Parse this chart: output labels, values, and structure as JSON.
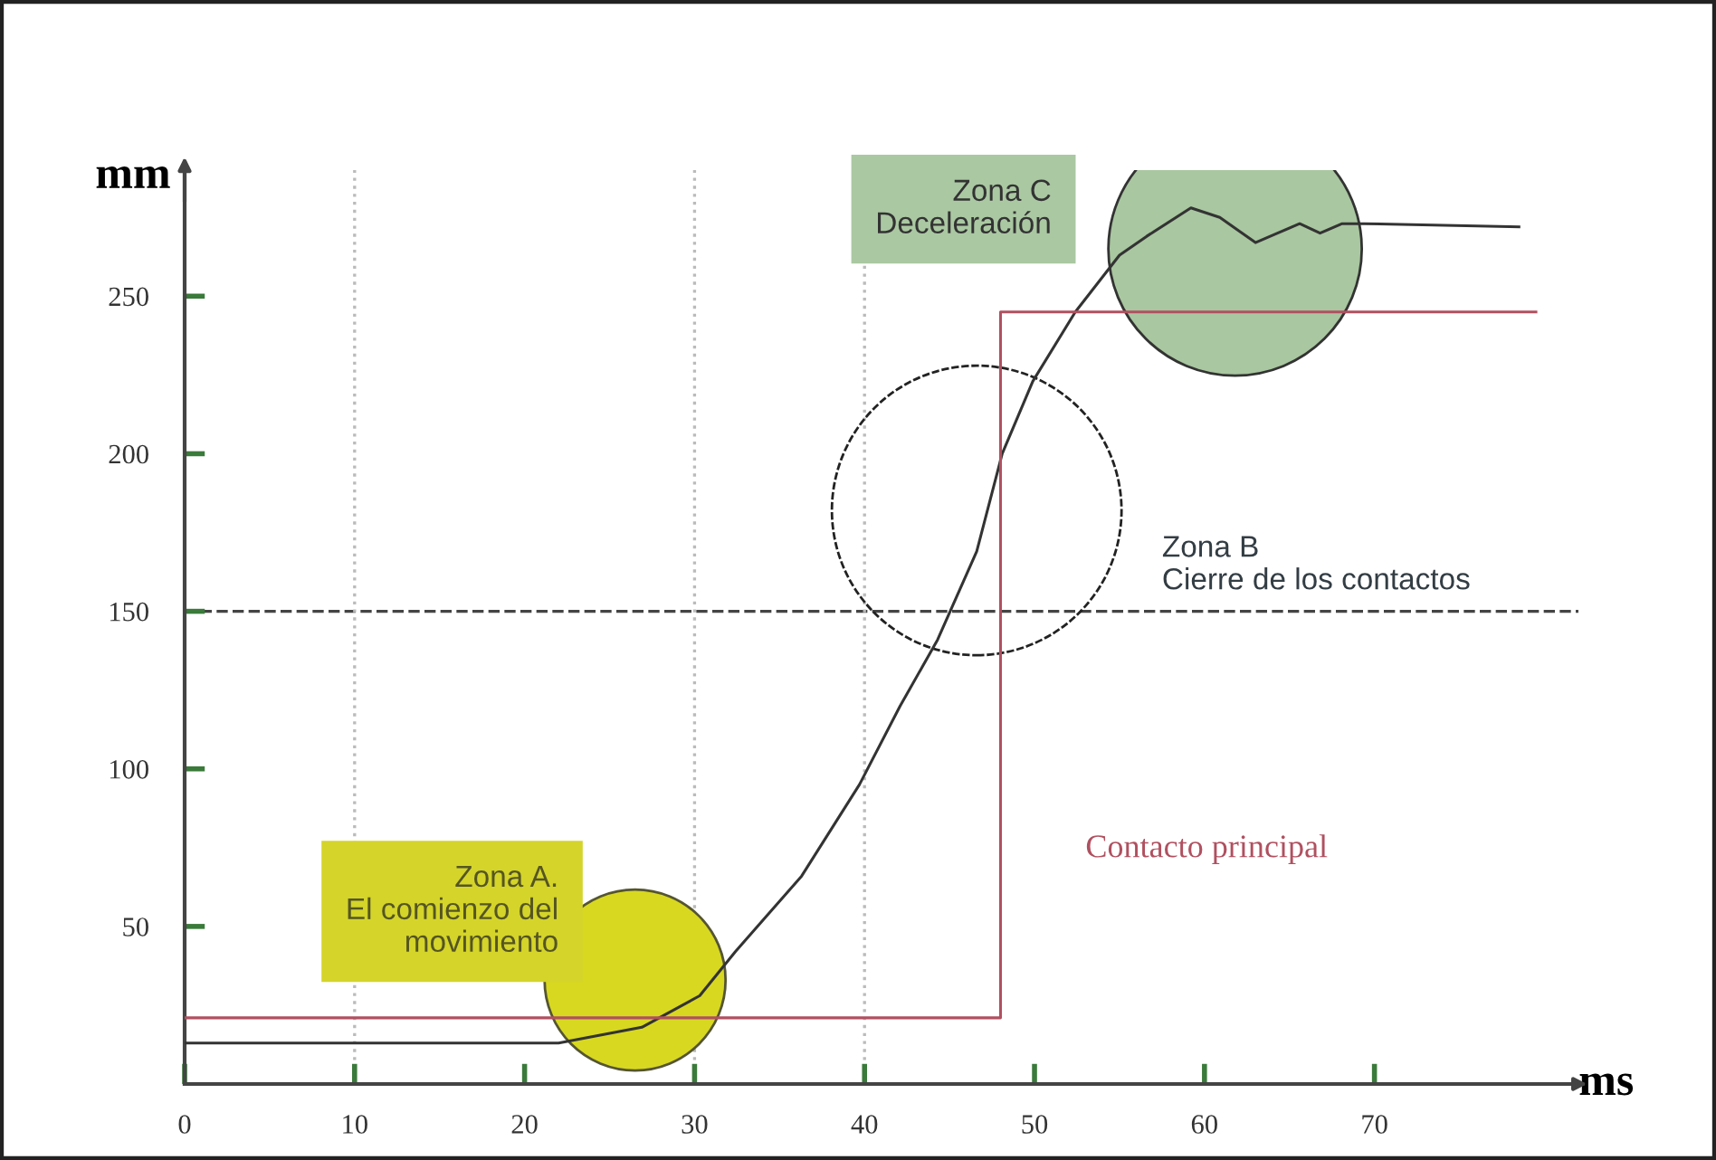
{
  "chart_data": {
    "type": "line",
    "xlabel": "ms",
    "ylabel": "mm",
    "xlim": [
      0,
      82
    ],
    "ylim": [
      0,
      290
    ],
    "xticks": [
      0,
      10,
      20,
      30,
      40,
      50,
      60,
      70
    ],
    "yticks": [
      50,
      100,
      150,
      200,
      250
    ],
    "grid": false,
    "legend": false,
    "marker": "none",
    "line_style": "solid",
    "series": [
      {
        "color": "#333333",
        "x": [
          0,
          22,
          26.9,
          30.3,
          32.4,
          36.3,
          39.7,
          42.1,
          44.3,
          46.6,
          48.1,
          49.9,
          52.4,
          55.0,
          56.6,
          59.2,
          60.9,
          63.0,
          64.3,
          65.6,
          66.8,
          68.1,
          69.4,
          78.5
        ],
        "values": [
          13,
          13,
          18,
          28,
          42,
          66,
          95,
          120,
          141,
          169,
          200,
          223,
          245,
          263,
          269,
          278,
          275,
          267,
          270,
          273,
          270,
          273,
          273,
          272
        ]
      },
      {
        "name": "Contacto principal",
        "type": "step",
        "color": "#b05060",
        "x": [
          0,
          48,
          79.5
        ],
        "values": [
          21,
          245,
          245
        ]
      }
    ],
    "ref_lines": [
      {
        "axis": "y",
        "value": 150,
        "color": "#444444",
        "line_style": "dashed"
      },
      {
        "axis": "x",
        "value": 10,
        "color": "#bbbbbb",
        "line_style": "dotted"
      },
      {
        "axis": "x",
        "value": 30,
        "color": "#bbbbbb",
        "line_style": "dotted"
      },
      {
        "axis": "x",
        "value": 40,
        "color": "#bbbbbb",
        "line_style": "dotted"
      }
    ],
    "annotations": [
      "Zona A.\nEl comienzo del\nmovimiento",
      "Zona B\nCierre de los contactos",
      "Zona C\nDeceleración"
    ]
  }
}
